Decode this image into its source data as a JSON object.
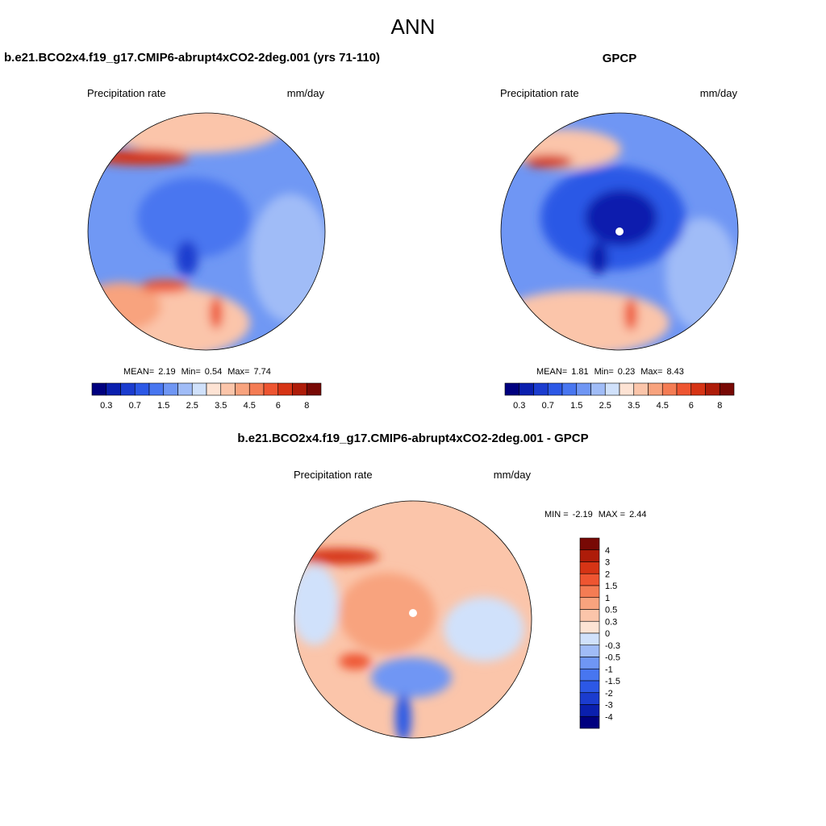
{
  "title": "ANN",
  "palette": [
    "#00007f",
    "#0a1fae",
    "#1b3ccf",
    "#2c58e6",
    "#4876f0",
    "#6f96f4",
    "#a0bcf7",
    "#d0e1fb",
    "#fde3d4",
    "#fbc5aa",
    "#f8a37e",
    "#f47c54",
    "#ee5531",
    "#d63415",
    "#ae1c09",
    "#780905"
  ],
  "panels": [
    {
      "title": "b.e21.BCO2x4.f19_g17.CMIP6-abrupt4xCO2-2deg.001 (yrs 71-110)",
      "left": "Precipitation rate",
      "right": "mm/day",
      "stats": [
        "MEAN=",
        "2.19",
        "Min=",
        "0.54",
        "Max=",
        "7.74"
      ],
      "colorbar": [
        "0.3",
        "0.7",
        "1.5",
        "2.5",
        "3.5",
        "4.5",
        "6",
        "8"
      ]
    },
    {
      "title": "GPCP",
      "left": "Precipitation rate",
      "right": "mm/day",
      "stats": [
        "MEAN=",
        "1.81",
        "Min=",
        "0.23",
        "Max=",
        "8.43"
      ],
      "colorbar": [
        "0.3",
        "0.7",
        "1.5",
        "2.5",
        "3.5",
        "4.5",
        "6",
        "8"
      ]
    },
    {
      "title": "b.e21.BCO2x4.f19_g17.CMIP6-abrupt4xCO2-2deg.001 - GPCP",
      "left": "Precipitation rate",
      "right": "mm/day",
      "stats": [
        "MIN =",
        "-2.19",
        "MAX =",
        "2.44"
      ],
      "colorbar": [
        "4",
        "3",
        "2",
        "1.5",
        "1",
        "0.5",
        "0.3",
        "0",
        "-0.3",
        "-0.5",
        "-1",
        "-1.5",
        "-2",
        "-3",
        "-4"
      ]
    }
  ]
}
